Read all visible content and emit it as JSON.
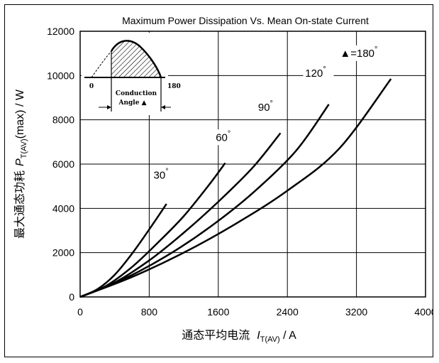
{
  "chart_data": {
    "type": "line",
    "title": "Maximum Power Dissipation Vs. Mean On-state Current",
    "xlabel": {
      "prefix": "通态平均电流",
      "symbol": "I",
      "subscript": "T(AV)",
      "unit": " /  A"
    },
    "ylabel": {
      "prefix": "最大通态功耗",
      "symbol": "P",
      "subscript": "T(AV)",
      "suffix": "(max) / W"
    },
    "xlim": [
      0,
      4000
    ],
    "ylim": [
      0,
      12000
    ],
    "x_ticks": [
      "0",
      "800",
      "1600",
      "2400",
      "3200",
      "4000"
    ],
    "y_ticks": [
      "0",
      "2000",
      "4000",
      "6000",
      "8000",
      "10000",
      "12000"
    ],
    "grid": true,
    "series": [
      {
        "name": "30°",
        "label_main": "30",
        "label_sup": "°",
        "points": [
          [
            0,
            0
          ],
          [
            200,
            350
          ],
          [
            400,
            1000
          ],
          [
            600,
            1950
          ],
          [
            800,
            3050
          ],
          [
            1000,
            4200
          ]
        ]
      },
      {
        "name": "60°",
        "label_main": "60",
        "label_sup": "°",
        "points": [
          [
            0,
            0
          ],
          [
            300,
            500
          ],
          [
            600,
            1350
          ],
          [
            900,
            2450
          ],
          [
            1200,
            3650
          ],
          [
            1500,
            5100
          ],
          [
            1680,
            6050
          ]
        ]
      },
      {
        "name": "90°",
        "label_main": "90",
        "label_sup": "°",
        "points": [
          [
            0,
            0
          ],
          [
            400,
            650
          ],
          [
            800,
            1650
          ],
          [
            1200,
            2900
          ],
          [
            1600,
            4300
          ],
          [
            2000,
            5850
          ],
          [
            2320,
            7400
          ]
        ]
      },
      {
        "name": "120°",
        "label_main": "120",
        "label_sup": "°",
        "points": [
          [
            0,
            0
          ],
          [
            500,
            800
          ],
          [
            1000,
            1850
          ],
          [
            1500,
            3150
          ],
          [
            2000,
            4700
          ],
          [
            2500,
            6600
          ],
          [
            2880,
            8700
          ]
        ]
      },
      {
        "name": "180°",
        "label_main": "▲=180",
        "label_sup": "°",
        "points": [
          [
            0,
            0
          ],
          [
            600,
            900
          ],
          [
            1200,
            2000
          ],
          [
            1800,
            3300
          ],
          [
            2400,
            4800
          ],
          [
            3000,
            6700
          ],
          [
            3600,
            9850
          ]
        ]
      }
    ],
    "inset": {
      "tick_start": "0",
      "tick_end": "180",
      "caption_line1": "Conduction",
      "caption_line2": "Angle ▲"
    }
  }
}
